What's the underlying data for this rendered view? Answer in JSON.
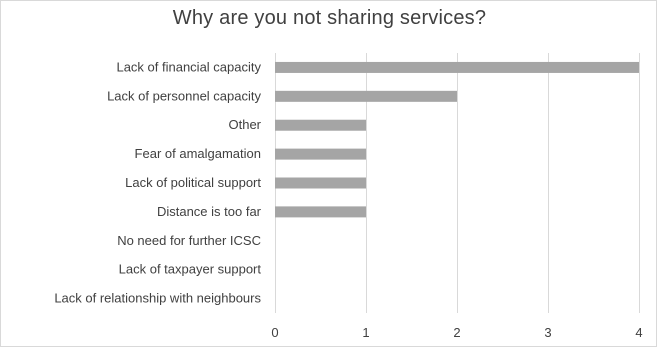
{
  "chart_data": {
    "type": "bar",
    "orientation": "horizontal",
    "title": "Why are you not sharing services?",
    "xlabel": "",
    "ylabel": "",
    "categories": [
      "Lack of financial capacity",
      "Lack of personnel capacity",
      "Other",
      "Fear of amalgamation",
      "Lack of political support",
      "Distance is too far",
      "No need for further ICSC",
      "Lack of taxpayer support",
      "Lack of relationship with neighbours"
    ],
    "values": [
      4,
      2,
      1,
      1,
      1,
      1,
      0,
      0,
      0
    ],
    "xlim": [
      0,
      4
    ],
    "xticks": [
      0,
      1,
      2,
      3,
      4
    ],
    "grid": true,
    "legend": "none",
    "bar_color": "#a5a5a5",
    "grid_color": "#d9d9d9",
    "text_color": "#404040"
  }
}
